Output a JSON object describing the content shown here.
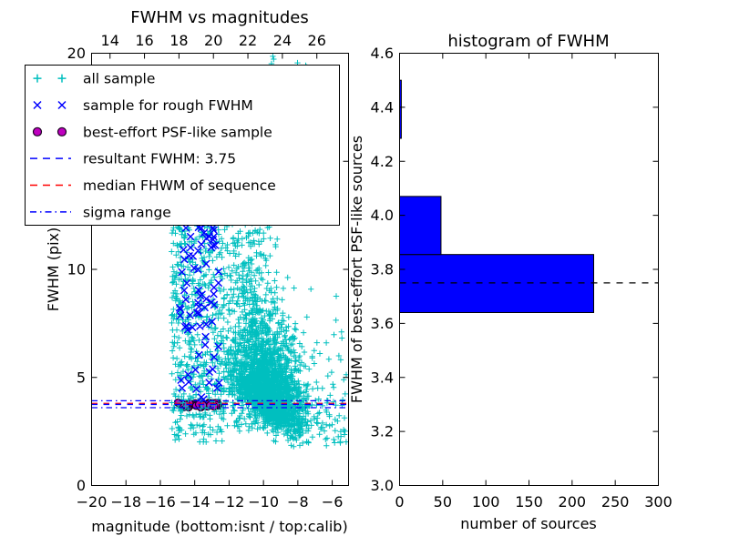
{
  "figure": {
    "background": "#ffffff"
  },
  "chart_data": [
    {
      "type": "scatter",
      "title": "FWHM vs magnitudes",
      "xlabel": "magnitude (bottom:isnt / top:calib)",
      "ylabel": "FWHM (pix)",
      "xlim": [
        -20,
        -5.05
      ],
      "ylim": [
        0,
        20
      ],
      "x_ticks": [
        -20,
        -18,
        -16,
        -14,
        -12,
        -10,
        -8,
        -6
      ],
      "x_tick_labels": [
        "−20",
        "−18",
        "−16",
        "−14",
        "−12",
        "−10",
        "−8",
        "−6"
      ],
      "y_ticks": [
        0,
        5,
        10,
        15,
        20
      ],
      "y_tick_labels": [
        "0",
        "5",
        "10",
        "15",
        "20"
      ],
      "top_axis": {
        "lim": [
          12.93,
          27.84
        ],
        "ticks": [
          14,
          16,
          18,
          20,
          22,
          24,
          26
        ],
        "tick_labels": [
          "14",
          "16",
          "18",
          "20",
          "22",
          "24",
          "26"
        ]
      },
      "grid": false,
      "legend_position": "upper left",
      "legend": [
        {
          "label": "all sample",
          "marker": "plus",
          "color": "#00bfbf"
        },
        {
          "label": "sample for rough FWHM",
          "marker": "x",
          "color": "#0000ff"
        },
        {
          "label": "best-effort PSF-like sample",
          "marker": "circle",
          "color": "#bf00bf"
        },
        {
          "label": "resultant FWHM: 3.75",
          "marker": "dashed-line",
          "color": "#0000ff"
        },
        {
          "label": "median FHWM of sequence",
          "marker": "dashed-line",
          "color": "#ff0000"
        },
        {
          "label": "sigma range",
          "marker": "dashdot-line",
          "color": "#0000ff"
        }
      ],
      "series_note": "dense scatter approximated by generative clusters read from this JSON",
      "clusters": [
        {
          "name": "all-sample-band-sparse",
          "marker": "plus",
          "color": "#00bfbf",
          "count": 120,
          "mag": [
            "uniform",
            -15.35,
            -14.75
          ],
          "fwhm": [
            "uniform",
            1.8,
            12.8
          ]
        },
        {
          "name": "all-sample-band-dense",
          "marker": "plus",
          "color": "#00bfbf",
          "count": 430,
          "mag": [
            "uniform",
            -14.8,
            -12.3
          ],
          "fwhm": [
            "uniform",
            2.0,
            12.8
          ]
        },
        {
          "name": "all-sample-main-cloud",
          "marker": "plus",
          "color": "#00bfbf",
          "count": 2300,
          "mag": [
            "normal",
            -9.7,
            1.05,
            -12.3,
            -6.3
          ],
          "fwhm": [
            "locus",
            3.0,
            -8.2,
            0.52,
            1.7,
            0.55,
            0.8,
            13.2
          ]
        },
        {
          "name": "all-sample-tall-column",
          "marker": "plus",
          "color": "#00bfbf",
          "count": 430,
          "mag": [
            "normal",
            -10.9,
            0.75,
            -12.3,
            -9.2
          ],
          "fwhm": [
            "uniform",
            2.5,
            13.2
          ]
        },
        {
          "name": "all-sample-faint-tail",
          "marker": "plus",
          "color": "#00bfbf",
          "count": 85,
          "mag": [
            "uniform",
            -8.0,
            -5.15
          ],
          "fwhm": [
            "halfnorm",
            1.8,
            2.6,
            19.8
          ]
        },
        {
          "name": "all-sample-top-strays",
          "marker": "plus",
          "color": "#00bfbf",
          "count": 8,
          "mag": [
            "uniform",
            -9.6,
            -7.0
          ],
          "fwhm": [
            "uniform",
            19.2,
            19.95
          ]
        },
        {
          "name": "rough-fwhm-sample",
          "marker": "x",
          "color": "#0000ff",
          "count": 75,
          "mag": [
            "uniform",
            -14.9,
            -12.4
          ],
          "fwhm": [
            "uniform",
            3.9,
            12.5
          ]
        },
        {
          "name": "psf-like-sample",
          "marker": "circle",
          "color": "#bf00bf",
          "edge": "#1a0020",
          "count": 34,
          "mag": [
            "uniform",
            -15.0,
            -12.6
          ],
          "fwhm": [
            "normal",
            3.72,
            0.07,
            3.56,
            3.88
          ]
        }
      ],
      "lines": [
        {
          "label": "sigma range low",
          "y": 3.6,
          "color": "#0000ff",
          "dash": "dashdot"
        },
        {
          "label": "sigma range high",
          "y": 3.92,
          "color": "#0000ff",
          "dash": "dashdot"
        },
        {
          "label": "median FHWM of sequence",
          "y": 3.8,
          "color": "#ff0000",
          "dash": "dashed"
        },
        {
          "label": "resultant FWHM: 3.75",
          "y": 3.75,
          "color": "#0000ff",
          "dash": "dashed"
        }
      ]
    },
    {
      "type": "bar",
      "orientation": "horizontal",
      "title": "histogram of FWHM",
      "xlabel": "number of sources",
      "ylabel": "FWHM of best-effort PSF-like sources",
      "xlim": [
        0,
        300
      ],
      "ylim": [
        3.0,
        4.6
      ],
      "x_ticks": [
        0,
        50,
        100,
        150,
        200,
        250,
        300
      ],
      "x_tick_labels": [
        "0",
        "50",
        "100",
        "150",
        "200",
        "250",
        "300"
      ],
      "y_ticks": [
        3.0,
        3.2,
        3.4,
        3.6,
        3.8,
        4.0,
        4.2,
        4.4,
        4.6
      ],
      "y_tick_labels": [
        "3.0",
        "3.2",
        "3.4",
        "3.6",
        "3.8",
        "4.0",
        "4.2",
        "4.4",
        "4.6"
      ],
      "bar_color": "#0000ff",
      "bar_edge_color": "#000000",
      "bins": [
        {
          "y0": 3.64,
          "y1": 3.855,
          "count": 225
        },
        {
          "y0": 3.855,
          "y1": 4.07,
          "count": 48
        },
        {
          "y0": 4.07,
          "y1": 4.285,
          "count": 0
        },
        {
          "y0": 4.285,
          "y1": 4.5,
          "count": 2
        }
      ],
      "median_line": {
        "y": 3.75,
        "color": "#000000",
        "dash": "dashed"
      }
    }
  ]
}
